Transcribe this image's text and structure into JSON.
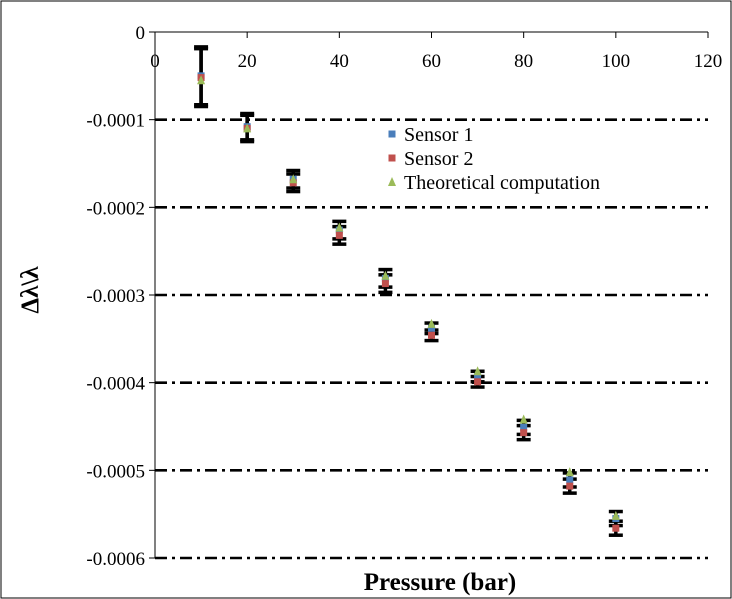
{
  "chart_data": {
    "type": "scatter",
    "title": "",
    "xlabel": "Pressure (bar)",
    "ylabel": "Δλ\\λ",
    "xlim": [
      0,
      120
    ],
    "ylim": [
      -0.0006,
      0
    ],
    "x_ticks": [
      0,
      20,
      40,
      60,
      80,
      100,
      120
    ],
    "y_ticks": [
      0,
      -0.0001,
      -0.0002,
      -0.0003,
      -0.0004,
      -0.0005,
      -0.0006
    ],
    "x_tick_labels": [
      "0",
      "20",
      "40",
      "60",
      "80",
      "100",
      "120"
    ],
    "y_tick_labels": [
      "0",
      "-0.0001",
      "-0.0002",
      "-0.0003",
      "-0.0004",
      "-0.0005",
      "-0.0006"
    ],
    "grid": "horizontal dash-dot",
    "legend_position": "top-right",
    "series": [
      {
        "name": "Sensor 1",
        "color": "#4a7ebb",
        "marker": "square",
        "x": [
          10,
          20,
          30,
          40,
          50,
          60,
          70,
          80,
          90,
          100
        ],
        "y": [
          -5e-05,
          -0.000108,
          -0.000168,
          -0.000226,
          -0.000281,
          -0.000338,
          -0.000393,
          -0.000451,
          -0.000511,
          -0.000555
        ],
        "error": [
          3.3e-05,
          1.5e-05,
          1e-05,
          1e-05,
          1e-05,
          6e-06,
          6e-06,
          8e-06,
          8e-06,
          8e-06
        ]
      },
      {
        "name": "Sensor 2",
        "color": "#c0504d",
        "marker": "square",
        "x": [
          10,
          20,
          30,
          40,
          50,
          60,
          70,
          80,
          90,
          100
        ],
        "y": [
          -5.2e-05,
          -0.00011,
          -0.000172,
          -0.000232,
          -0.000287,
          -0.000346,
          -0.000399,
          -0.000457,
          -0.000518,
          -0.000566
        ],
        "error": [
          3.3e-05,
          1.5e-05,
          1e-05,
          1e-05,
          1e-05,
          6e-06,
          6e-06,
          8e-06,
          8e-06,
          8e-06
        ]
      },
      {
        "name": "Theoretical computation",
        "color": "#9bbb59",
        "marker": "triangle",
        "x": [
          10,
          20,
          30,
          40,
          50,
          60,
          70,
          80,
          90,
          100
        ],
        "y": [
          -5.5e-05,
          -0.00011,
          -0.000168,
          -0.000223,
          -0.000278,
          -0.000333,
          -0.000387,
          -0.000442,
          -0.000502,
          -0.000552
        ]
      }
    ]
  }
}
